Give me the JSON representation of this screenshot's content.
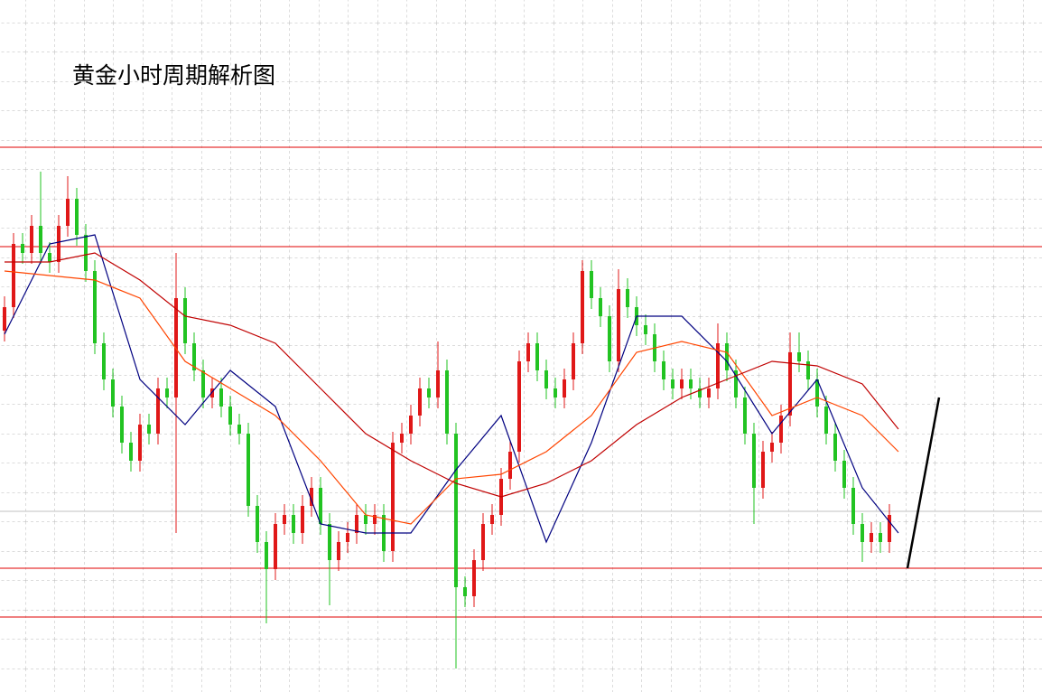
{
  "chart_data": {
    "type": "candlestick",
    "title": "黄金小时周期解析图",
    "ylim": [
      0,
      766
    ],
    "grid": true,
    "up_color": "#e01818",
    "down_color": "#22c322",
    "open": [
      400,
      426,
      496,
      486,
      516,
      486,
      476,
      516,
      546,
      506,
      466,
      386,
      346,
      316,
      276,
      256,
      296,
      286,
      336,
      326,
      436,
      386,
      356,
      326,
      336,
      316,
      296,
      286,
      206,
      166,
      136,
      186,
      196,
      176,
      206,
      226,
      186,
      146,
      166,
      176,
      196,
      186,
      196,
      156,
      276,
      286,
      306,
      336,
      326,
      356,
      286,
      116,
      106,
      146,
      186,
      196,
      236,
      266,
      366,
      386,
      356,
      336,
      326,
      346,
      386,
      466,
      436,
      416,
      366,
      446,
      426,
      406,
      396,
      366,
      346,
      336,
      346,
      336,
      326,
      336,
      386,
      356,
      326,
      286,
      226,
      266,
      276,
      306,
      376,
      366,
      346,
      316,
      286,
      256,
      226,
      186,
      166,
      176,
      166
    ],
    "high": [
      438,
      508,
      508,
      528,
      576,
      498,
      528,
      571,
      558,
      518,
      478,
      398,
      358,
      328,
      288,
      308,
      308,
      348,
      348,
      486,
      448,
      398,
      368,
      348,
      348,
      328,
      308,
      298,
      218,
      178,
      198,
      208,
      208,
      218,
      238,
      238,
      198,
      178,
      188,
      208,
      208,
      208,
      208,
      288,
      298,
      318,
      348,
      348,
      388,
      368,
      298,
      128,
      158,
      198,
      208,
      248,
      278,
      378,
      398,
      398,
      368,
      348,
      358,
      398,
      478,
      478,
      448,
      428,
      468,
      458,
      438,
      418,
      408,
      378,
      358,
      358,
      358,
      348,
      348,
      408,
      398,
      368,
      338,
      298,
      278,
      288,
      318,
      398,
      398,
      378,
      358,
      328,
      298,
      268,
      238,
      198,
      188,
      188,
      208
    ],
    "low": [
      388,
      414,
      474,
      474,
      474,
      464,
      464,
      504,
      494,
      454,
      374,
      334,
      304,
      264,
      244,
      244,
      274,
      274,
      314,
      176,
      374,
      344,
      314,
      314,
      304,
      284,
      274,
      194,
      154,
      76,
      124,
      174,
      164,
      164,
      194,
      174,
      96,
      134,
      154,
      164,
      174,
      174,
      144,
      144,
      264,
      274,
      294,
      314,
      314,
      274,
      26,
      94,
      94,
      134,
      174,
      184,
      224,
      254,
      354,
      344,
      324,
      314,
      314,
      334,
      374,
      424,
      404,
      354,
      354,
      414,
      394,
      384,
      354,
      334,
      324,
      324,
      324,
      314,
      314,
      324,
      344,
      314,
      274,
      186,
      214,
      254,
      264,
      294,
      354,
      334,
      304,
      274,
      244,
      214,
      174,
      144,
      154,
      154,
      154
    ],
    "close": [
      426,
      496,
      486,
      516,
      486,
      476,
      516,
      546,
      506,
      466,
      386,
      346,
      316,
      276,
      256,
      296,
      286,
      336,
      326,
      436,
      386,
      356,
      326,
      336,
      316,
      296,
      286,
      206,
      166,
      136,
      186,
      196,
      176,
      206,
      226,
      186,
      146,
      166,
      176,
      196,
      186,
      196,
      156,
      276,
      286,
      306,
      336,
      326,
      356,
      286,
      116,
      106,
      146,
      186,
      196,
      236,
      266,
      366,
      386,
      356,
      336,
      326,
      346,
      386,
      466,
      436,
      416,
      366,
      446,
      426,
      406,
      396,
      366,
      346,
      336,
      346,
      336,
      326,
      336,
      386,
      356,
      326,
      286,
      226,
      266,
      276,
      306,
      376,
      366,
      346,
      316,
      286,
      256,
      226,
      186,
      166,
      176,
      166,
      196
    ],
    "series": [
      {
        "color": "#000080",
        "x": [
          0,
          5,
          10,
          15,
          20,
          25,
          30,
          35,
          40,
          45,
          50,
          55,
          60,
          65,
          70,
          75,
          80,
          85,
          90,
          95,
          99
        ],
        "values": [
          396,
          496,
          506,
          346,
          296,
          356,
          316,
          186,
          176,
          176,
          246,
          306,
          166,
          276,
          416,
          416,
          366,
          286,
          346,
          226,
          176
        ]
      },
      {
        "color": "#ff4500",
        "x": [
          0,
          5,
          10,
          15,
          20,
          25,
          30,
          35,
          40,
          45,
          50,
          55,
          60,
          65,
          70,
          75,
          80,
          85,
          90,
          95,
          99
        ],
        "values": [
          466,
          461,
          456,
          436,
          366,
          336,
          306,
          256,
          196,
          186,
          236,
          241,
          266,
          306,
          376,
          388,
          376,
          306,
          326,
          306,
          266
        ]
      },
      {
        "color": "#c00000",
        "x": [
          0,
          5,
          10,
          15,
          20,
          25,
          30,
          35,
          40,
          45,
          50,
          55,
          60,
          65,
          70,
          75,
          80,
          85,
          90,
          95,
          99
        ],
        "values": [
          476,
          476,
          486,
          456,
          416,
          406,
          386,
          336,
          286,
          256,
          231,
          216,
          231,
          256,
          296,
          326,
          346,
          366,
          361,
          341,
          291
        ]
      }
    ],
    "levels": [
      603,
      493,
      137,
      83
    ],
    "level_color": "#e00000",
    "price_line": 200
  }
}
